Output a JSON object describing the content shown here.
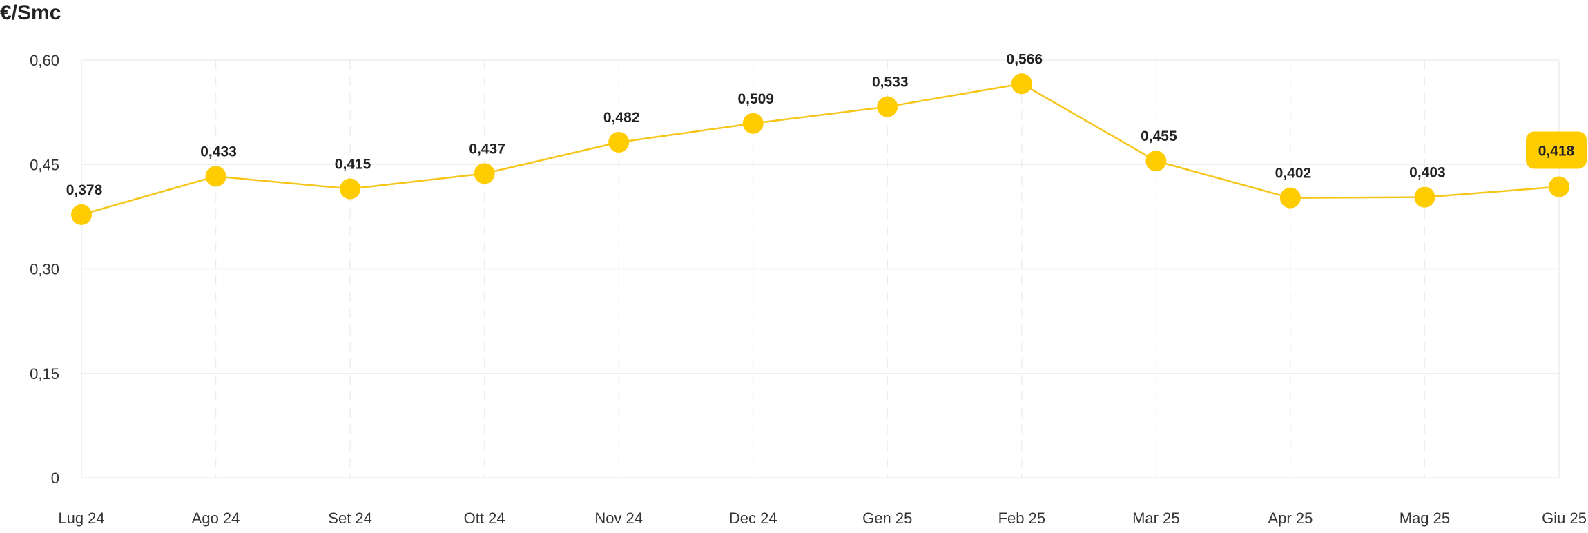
{
  "chart_data": {
    "type": "line",
    "ylabel": "€/Smc",
    "categories": [
      "Lug 24",
      "Ago 24",
      "Set 24",
      "Ott 24",
      "Nov 24",
      "Dec 24",
      "Gen 25",
      "Feb 25",
      "Mar 25",
      "Apr 25",
      "Mag 25",
      "Giu 25"
    ],
    "values": [
      0.378,
      0.433,
      0.415,
      0.437,
      0.482,
      0.509,
      0.533,
      0.566,
      0.455,
      0.402,
      0.403,
      0.418
    ],
    "value_labels": [
      "0,378",
      "0,433",
      "0,415",
      "0,437",
      "0,482",
      "0,509",
      "0,533",
      "0,566",
      "0,455",
      "0,402",
      "0,403",
      "0,418"
    ],
    "yticks": [
      0,
      0.15,
      0.3,
      0.45,
      0.6
    ],
    "ytick_labels": [
      "0",
      "0,15",
      "0,30",
      "0,45",
      "0,60"
    ],
    "ylim": [
      0,
      0.6
    ],
    "highlight_index": 11,
    "grid": true,
    "colors": {
      "line": "#F5C518",
      "marker": "#FFCC00",
      "highlight_badge": "#FFCC00",
      "grid": "#EEEEEE"
    }
  }
}
